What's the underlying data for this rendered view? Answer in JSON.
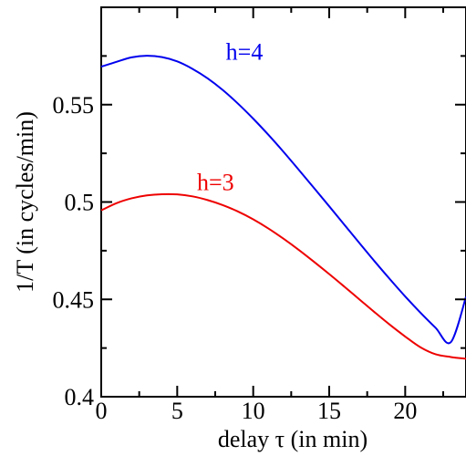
{
  "chart_data": {
    "type": "line",
    "xlabel": "delay τ (in min)",
    "ylabel": "1/T (in cycles/min)",
    "xlim": [
      0,
      24
    ],
    "ylim": [
      0.4,
      0.6
    ],
    "x_ticks": [
      0,
      5,
      10,
      15,
      20
    ],
    "x_tick_labels": [
      "0",
      "5",
      "10",
      "15",
      "20"
    ],
    "y_ticks": [
      0.4,
      0.45,
      0.5,
      0.55
    ],
    "y_tick_labels": [
      "0.4",
      "0.45",
      "0.5",
      "0.55"
    ],
    "grid": false,
    "legend": "none",
    "series": [
      {
        "name": "h=4",
        "color": "#0000ee",
        "x": [
          0,
          1,
          2,
          3,
          4,
          5,
          6,
          7,
          8,
          9,
          10,
          11,
          12,
          13,
          14,
          15,
          16,
          17,
          18,
          19,
          20,
          21,
          22,
          23,
          24
        ],
        "y": [
          0.5695,
          0.572,
          0.5743,
          0.5751,
          0.5744,
          0.5722,
          0.5684,
          0.5635,
          0.5575,
          0.5505,
          0.5428,
          0.5345,
          0.5257,
          0.5165,
          0.5072,
          0.4978,
          0.4883,
          0.4788,
          0.4694,
          0.4603,
          0.4515,
          0.4432,
          0.4354,
          0.428,
          0.4513
        ]
      },
      {
        "name": "h=3",
        "color": "#ee0000",
        "x": [
          0,
          1,
          2,
          3,
          4,
          5,
          6,
          7,
          8,
          9,
          10,
          11,
          12,
          13,
          14,
          15,
          16,
          17,
          18,
          19,
          20,
          21,
          22,
          23,
          24
        ],
        "y": [
          0.4957,
          0.4994,
          0.5019,
          0.5034,
          0.504,
          0.5039,
          0.5029,
          0.501,
          0.4984,
          0.4951,
          0.4911,
          0.4864,
          0.4811,
          0.4754,
          0.4693,
          0.463,
          0.4565,
          0.4499,
          0.4433,
          0.4369,
          0.4309,
          0.4254,
          0.4218,
          0.4204,
          0.4195
        ]
      }
    ],
    "series_labels": [
      {
        "text": "h=4",
        "x": 8.2,
        "y": 0.573,
        "color": "#0000ee"
      },
      {
        "text": "h=3",
        "x": 6.3,
        "y": 0.506,
        "color": "#ee0000"
      }
    ]
  }
}
